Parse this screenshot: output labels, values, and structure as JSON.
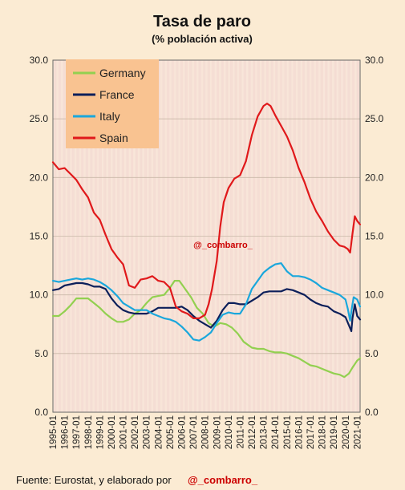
{
  "title": "Tasa de paro",
  "subtitle": "(% población activa)",
  "watermark": "@_combarro_",
  "footer": {
    "source_label": "Fuente: Eurostat, y elaborado por",
    "author": "@_combarro_"
  },
  "colors": {
    "background": "#fbebd3",
    "grid": "#e8c2c2",
    "legend_bg": "#f9c391",
    "watermark": "#cc0000"
  },
  "chart_data": {
    "type": "line",
    "title": "Tasa de paro",
    "subtitle": "(% población activa)",
    "xlabel": "",
    "ylabel": "",
    "ylim": [
      0,
      30
    ],
    "xlim": [
      1995.0,
      2021.25
    ],
    "yticks": [
      "0.0",
      "5.0",
      "10.0",
      "15.0",
      "20.0",
      "25.0",
      "30.0"
    ],
    "xticks": [
      "1995-01",
      "1996-01",
      "1997-01",
      "1998-01",
      "1999-01",
      "2000-01",
      "2001-01",
      "2002-01",
      "2003-01",
      "2004-01",
      "2005-01",
      "2006-01",
      "2007-01",
      "2008-01",
      "2009-01",
      "2010-01",
      "2011-01",
      "2012-01",
      "2013-01",
      "2014-01",
      "2015-01",
      "2016-01",
      "2017-01",
      "2018-01",
      "2019-01",
      "2020-01",
      "2021-01"
    ],
    "grid": true,
    "secondary_y_axis": true,
    "legend": {
      "placement": "top-left"
    },
    "series": [
      {
        "name": "Germany",
        "color": "#92d050",
        "x": [
          1995.0,
          1995.5,
          1996.0,
          1996.5,
          1997.0,
          1997.5,
          1998.0,
          1998.5,
          1999.0,
          1999.5,
          2000.0,
          2000.5,
          2001.0,
          2001.5,
          2002.0,
          2002.5,
          2003.0,
          2003.5,
          2004.0,
          2004.5,
          2005.0,
          2005.4,
          2005.8,
          2006.3,
          2006.8,
          2007.3,
          2007.8,
          2008.3,
          2008.8,
          2009.3,
          2009.8,
          2010.3,
          2010.8,
          2011.3,
          2012.0,
          2012.5,
          2013.0,
          2013.5,
          2014.0,
          2014.5,
          2015.0,
          2015.5,
          2016.0,
          2016.5,
          2017.0,
          2017.5,
          2018.0,
          2018.5,
          2019.0,
          2019.5,
          2019.9,
          2020.3,
          2020.6,
          2021.0,
          2021.25
        ],
        "y": [
          8.2,
          8.2,
          8.6,
          9.1,
          9.7,
          9.7,
          9.7,
          9.3,
          8.9,
          8.4,
          8.0,
          7.7,
          7.7,
          7.9,
          8.4,
          8.7,
          9.3,
          9.8,
          9.9,
          10.0,
          10.6,
          11.2,
          11.2,
          10.5,
          9.8,
          8.9,
          8.4,
          7.6,
          7.3,
          7.6,
          7.5,
          7.2,
          6.7,
          6.0,
          5.5,
          5.4,
          5.4,
          5.2,
          5.1,
          5.1,
          5.0,
          4.8,
          4.6,
          4.3,
          4.0,
          3.9,
          3.7,
          3.5,
          3.3,
          3.2,
          3.0,
          3.3,
          3.8,
          4.4,
          4.6
        ]
      },
      {
        "name": "France",
        "color": "#0c1f5a",
        "x": [
          1995.0,
          1995.5,
          1996.0,
          1996.5,
          1997.0,
          1997.5,
          1998.0,
          1998.5,
          1999.0,
          1999.5,
          2000.0,
          2000.5,
          2001.0,
          2001.5,
          2002.0,
          2002.5,
          2003.0,
          2003.5,
          2004.0,
          2004.5,
          2005.0,
          2005.5,
          2006.0,
          2006.5,
          2007.0,
          2007.5,
          2008.0,
          2008.5,
          2009.0,
          2009.5,
          2010.0,
          2010.5,
          2011.0,
          2011.5,
          2012.0,
          2012.5,
          2013.0,
          2013.5,
          2014.0,
          2014.5,
          2015.0,
          2015.5,
          2016.0,
          2016.5,
          2017.0,
          2017.5,
          2018.0,
          2018.5,
          2019.0,
          2019.5,
          2020.0,
          2020.3,
          2020.5,
          2020.6,
          2020.8,
          2021.0,
          2021.25
        ],
        "y": [
          10.4,
          10.5,
          10.8,
          10.9,
          11.0,
          11.0,
          10.9,
          10.7,
          10.7,
          10.5,
          9.7,
          9.1,
          8.7,
          8.5,
          8.4,
          8.4,
          8.4,
          8.6,
          8.9,
          8.9,
          8.9,
          8.9,
          9.0,
          8.7,
          8.2,
          7.8,
          7.5,
          7.2,
          7.8,
          8.7,
          9.3,
          9.3,
          9.2,
          9.2,
          9.5,
          9.8,
          10.2,
          10.3,
          10.3,
          10.3,
          10.5,
          10.4,
          10.2,
          10.0,
          9.6,
          9.3,
          9.1,
          9.0,
          8.6,
          8.4,
          8.1,
          7.4,
          6.9,
          8.0,
          9.2,
          8.2,
          7.9
        ]
      },
      {
        "name": "Italy",
        "color": "#1aa7dc",
        "x": [
          1995.0,
          1995.5,
          1996.0,
          1996.5,
          1997.0,
          1997.5,
          1998.0,
          1998.5,
          1999.0,
          1999.5,
          2000.0,
          2000.5,
          2001.0,
          2001.5,
          2002.0,
          2002.5,
          2003.0,
          2003.5,
          2004.0,
          2004.5,
          2005.0,
          2005.5,
          2006.0,
          2006.5,
          2007.0,
          2007.5,
          2008.0,
          2008.5,
          2009.0,
          2009.5,
          2010.0,
          2010.5,
          2011.0,
          2011.5,
          2012.0,
          2012.5,
          2013.0,
          2013.5,
          2014.0,
          2014.5,
          2015.0,
          2015.5,
          2016.0,
          2016.5,
          2017.0,
          2017.5,
          2018.0,
          2018.5,
          2019.0,
          2019.5,
          2020.0,
          2020.2,
          2020.4,
          2020.55,
          2020.7,
          2021.0,
          2021.25
        ],
        "y": [
          11.2,
          11.1,
          11.2,
          11.3,
          11.4,
          11.3,
          11.4,
          11.3,
          11.1,
          10.8,
          10.4,
          9.9,
          9.3,
          9.0,
          8.7,
          8.7,
          8.7,
          8.4,
          8.2,
          8.0,
          7.9,
          7.7,
          7.3,
          6.8,
          6.2,
          6.1,
          6.4,
          6.8,
          7.6,
          8.3,
          8.5,
          8.4,
          8.4,
          9.2,
          10.5,
          11.2,
          11.9,
          12.3,
          12.6,
          12.7,
          12.0,
          11.6,
          11.6,
          11.5,
          11.3,
          11.0,
          10.6,
          10.4,
          10.2,
          10.0,
          9.6,
          8.8,
          7.8,
          8.9,
          9.8,
          9.6,
          9.0
        ]
      },
      {
        "name": "Spain",
        "color": "#e0191b",
        "x": [
          1995.0,
          1995.5,
          1996.0,
          1996.5,
          1997.0,
          1997.5,
          1998.0,
          1998.5,
          1999.0,
          1999.5,
          2000.0,
          2000.5,
          2001.0,
          2001.5,
          2002.0,
          2002.5,
          2003.0,
          2003.5,
          2004.0,
          2004.5,
          2005.0,
          2005.5,
          2006.0,
          2006.5,
          2007.0,
          2007.5,
          2008.0,
          2008.3,
          2008.6,
          2009.0,
          2009.3,
          2009.6,
          2010.0,
          2010.5,
          2011.0,
          2011.5,
          2012.0,
          2012.5,
          2013.0,
          2013.3,
          2013.6,
          2014.0,
          2014.5,
          2015.0,
          2015.5,
          2016.0,
          2016.5,
          2017.0,
          2017.5,
          2018.0,
          2018.5,
          2019.0,
          2019.5,
          2019.9,
          2020.2,
          2020.4,
          2020.6,
          2020.8,
          2021.0,
          2021.25
        ],
        "y": [
          21.3,
          20.7,
          20.8,
          20.3,
          19.8,
          19.0,
          18.3,
          17.0,
          16.4,
          15.1,
          13.9,
          13.2,
          12.6,
          10.8,
          10.6,
          11.3,
          11.4,
          11.6,
          11.2,
          11.1,
          10.6,
          9.0,
          8.6,
          8.4,
          8.0,
          8.0,
          8.3,
          9.2,
          10.5,
          12.9,
          15.8,
          17.9,
          19.1,
          19.9,
          20.2,
          21.4,
          23.6,
          25.2,
          26.1,
          26.3,
          26.1,
          25.3,
          24.4,
          23.5,
          22.3,
          20.8,
          19.6,
          18.2,
          17.1,
          16.3,
          15.4,
          14.7,
          14.2,
          14.1,
          13.9,
          13.6,
          15.2,
          16.7,
          16.3,
          16.0
        ]
      }
    ]
  }
}
